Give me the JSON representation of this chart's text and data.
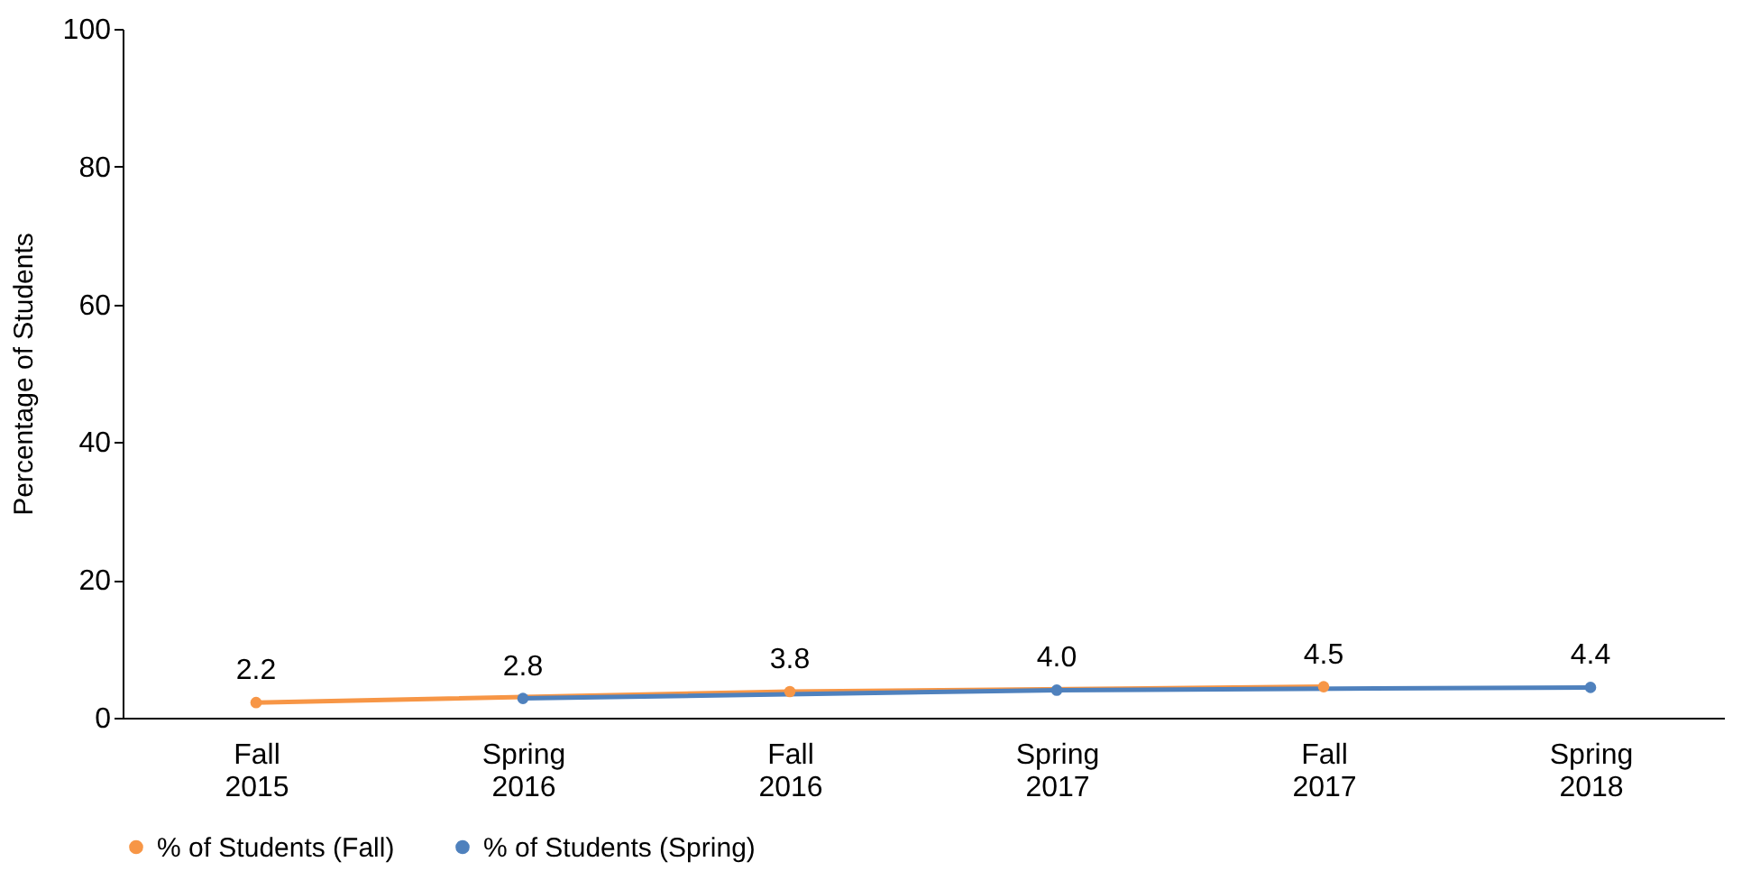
{
  "chart_data": {
    "type": "line",
    "ylabel": "Percentage of Students",
    "categories": [
      "Fall 2015",
      "Spring 2016",
      "Fall 2016",
      "Spring 2017",
      "Fall 2017",
      "Spring 2018"
    ],
    "series": [
      {
        "name": "% of Students (Fall)",
        "color": "#f79646",
        "values": [
          2.2,
          null,
          3.8,
          null,
          4.5,
          null
        ],
        "value_labels": [
          "2.2",
          null,
          "3.8",
          null,
          "4.5",
          null
        ]
      },
      {
        "name": "% of Students (Spring)",
        "color": "#4f81bd",
        "values": [
          null,
          2.8,
          null,
          4.0,
          null,
          4.4
        ],
        "value_labels": [
          null,
          "2.8",
          null,
          "4.0",
          null,
          "4.4"
        ]
      }
    ],
    "ylim": [
      0,
      100
    ],
    "yticks": [
      0,
      20,
      40,
      60,
      80,
      100
    ],
    "grid": false,
    "legend": "bottom",
    "marker": "circle",
    "line_style": "solid"
  }
}
